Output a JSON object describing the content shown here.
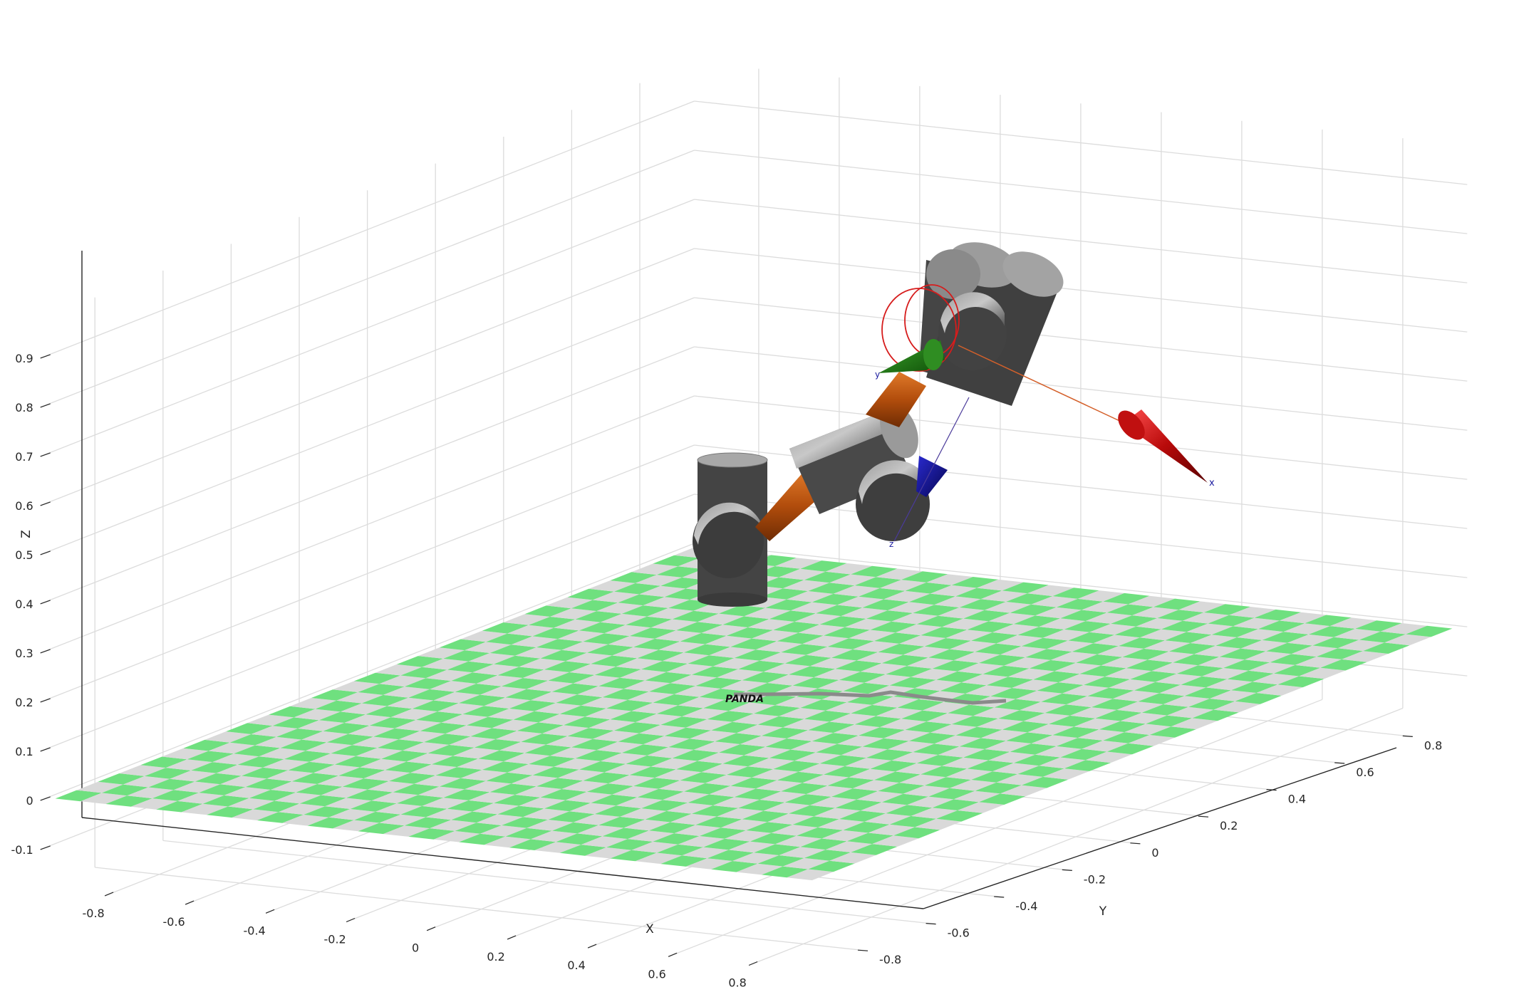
{
  "axes": {
    "x_label": "X",
    "y_label": "Y",
    "z_label": "Z",
    "x_ticks": [
      "-0.8",
      "-0.6",
      "-0.4",
      "-0.2",
      "0",
      "0.2",
      "0.4",
      "0.6",
      "0.8"
    ],
    "y_ticks": [
      "-0.8",
      "-0.6",
      "-0.4",
      "-0.2",
      "0",
      "0.2",
      "0.4",
      "0.6",
      "0.8"
    ],
    "z_ticks": [
      "-0.1",
      "0",
      "0.1",
      "0.2",
      "0.3",
      "0.4",
      "0.5",
      "0.6",
      "0.7",
      "0.8",
      "0.9"
    ]
  },
  "robot": {
    "name_label": "PANDA",
    "frame_x_label": "x",
    "frame_y_label": "y",
    "frame_z_label": "z"
  },
  "colors": {
    "link_gray": "#444444",
    "joint_orange": "#c0560f",
    "floor_green": "#6fe07f",
    "floor_gray": "#d9d9d9",
    "axis_red": "#c81414",
    "axis_green": "#1e7a12",
    "axis_blue": "#0a0a8c"
  }
}
